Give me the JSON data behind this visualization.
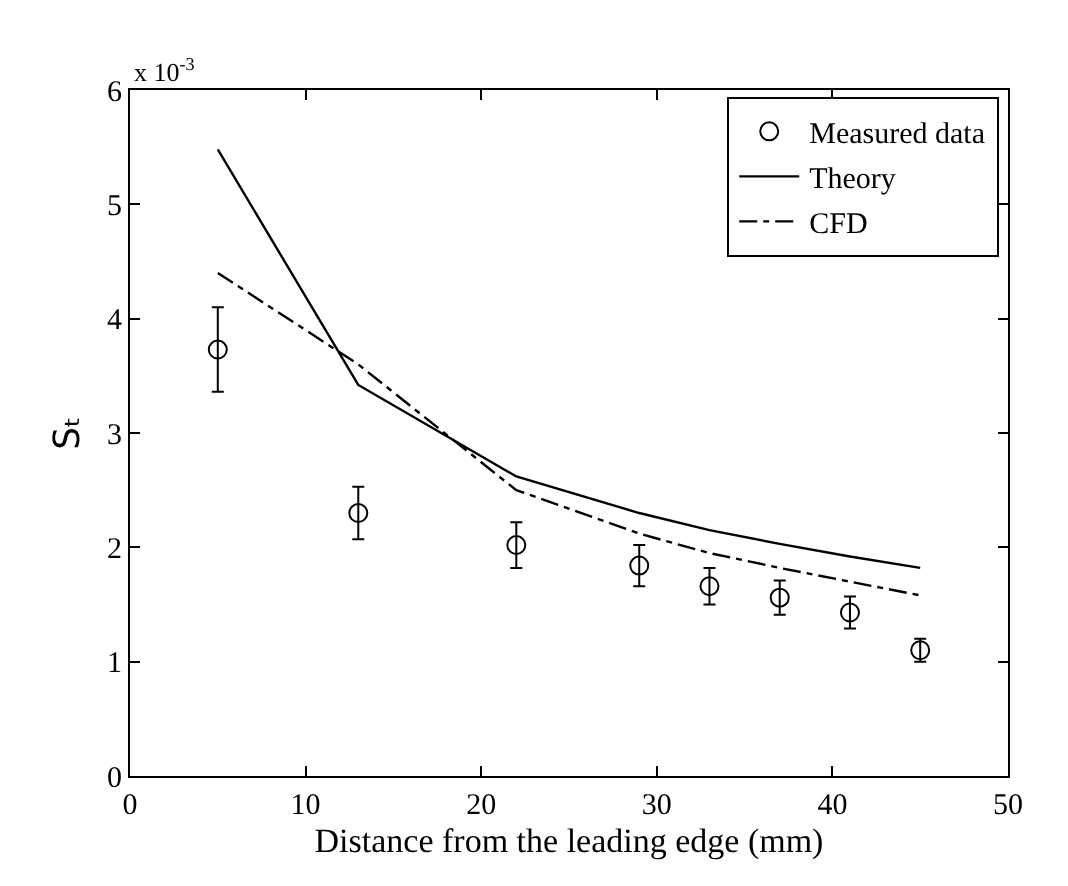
{
  "chart_data": {
    "type": "line",
    "xlabel": "Distance from the leading edge (mm)",
    "ylabel": "Sₜ",
    "annotations": [
      "x 10$^{-3}$"
    ],
    "xlim": [
      0,
      50
    ],
    "xticks": [
      0,
      10,
      20,
      30,
      40,
      50
    ],
    "ylim": [
      0,
      6
    ],
    "yticks": [
      0,
      1,
      2,
      3,
      4,
      5,
      6
    ],
    "legend": "top right",
    "series": [
      {
        "name": "Measured data",
        "type": "scatter",
        "marker": "circle",
        "color": "#000000",
        "x": [
          5,
          13,
          22,
          29,
          33,
          37,
          41,
          45
        ],
        "values": [
          3.73,
          2.3,
          2.02,
          1.84,
          1.66,
          1.56,
          1.43,
          1.1
        ],
        "errors": [
          0.37,
          0.23,
          0.2,
          0.18,
          0.16,
          0.15,
          0.14,
          0.1
        ]
      },
      {
        "name": "Theory",
        "line_style": "solid",
        "color": "#000000",
        "x": [
          5,
          13,
          22,
          29,
          33,
          37,
          41,
          45
        ],
        "values": [
          5.48,
          3.42,
          2.62,
          2.3,
          2.15,
          2.03,
          1.92,
          1.82
        ]
      },
      {
        "name": "CFD",
        "line_style": "dashdot",
        "color": "#000000",
        "x": [
          5,
          13,
          22,
          29,
          33,
          37,
          41,
          45
        ],
        "values": [
          4.4,
          3.6,
          2.5,
          2.12,
          1.95,
          1.82,
          1.7,
          1.58
        ]
      }
    ]
  }
}
